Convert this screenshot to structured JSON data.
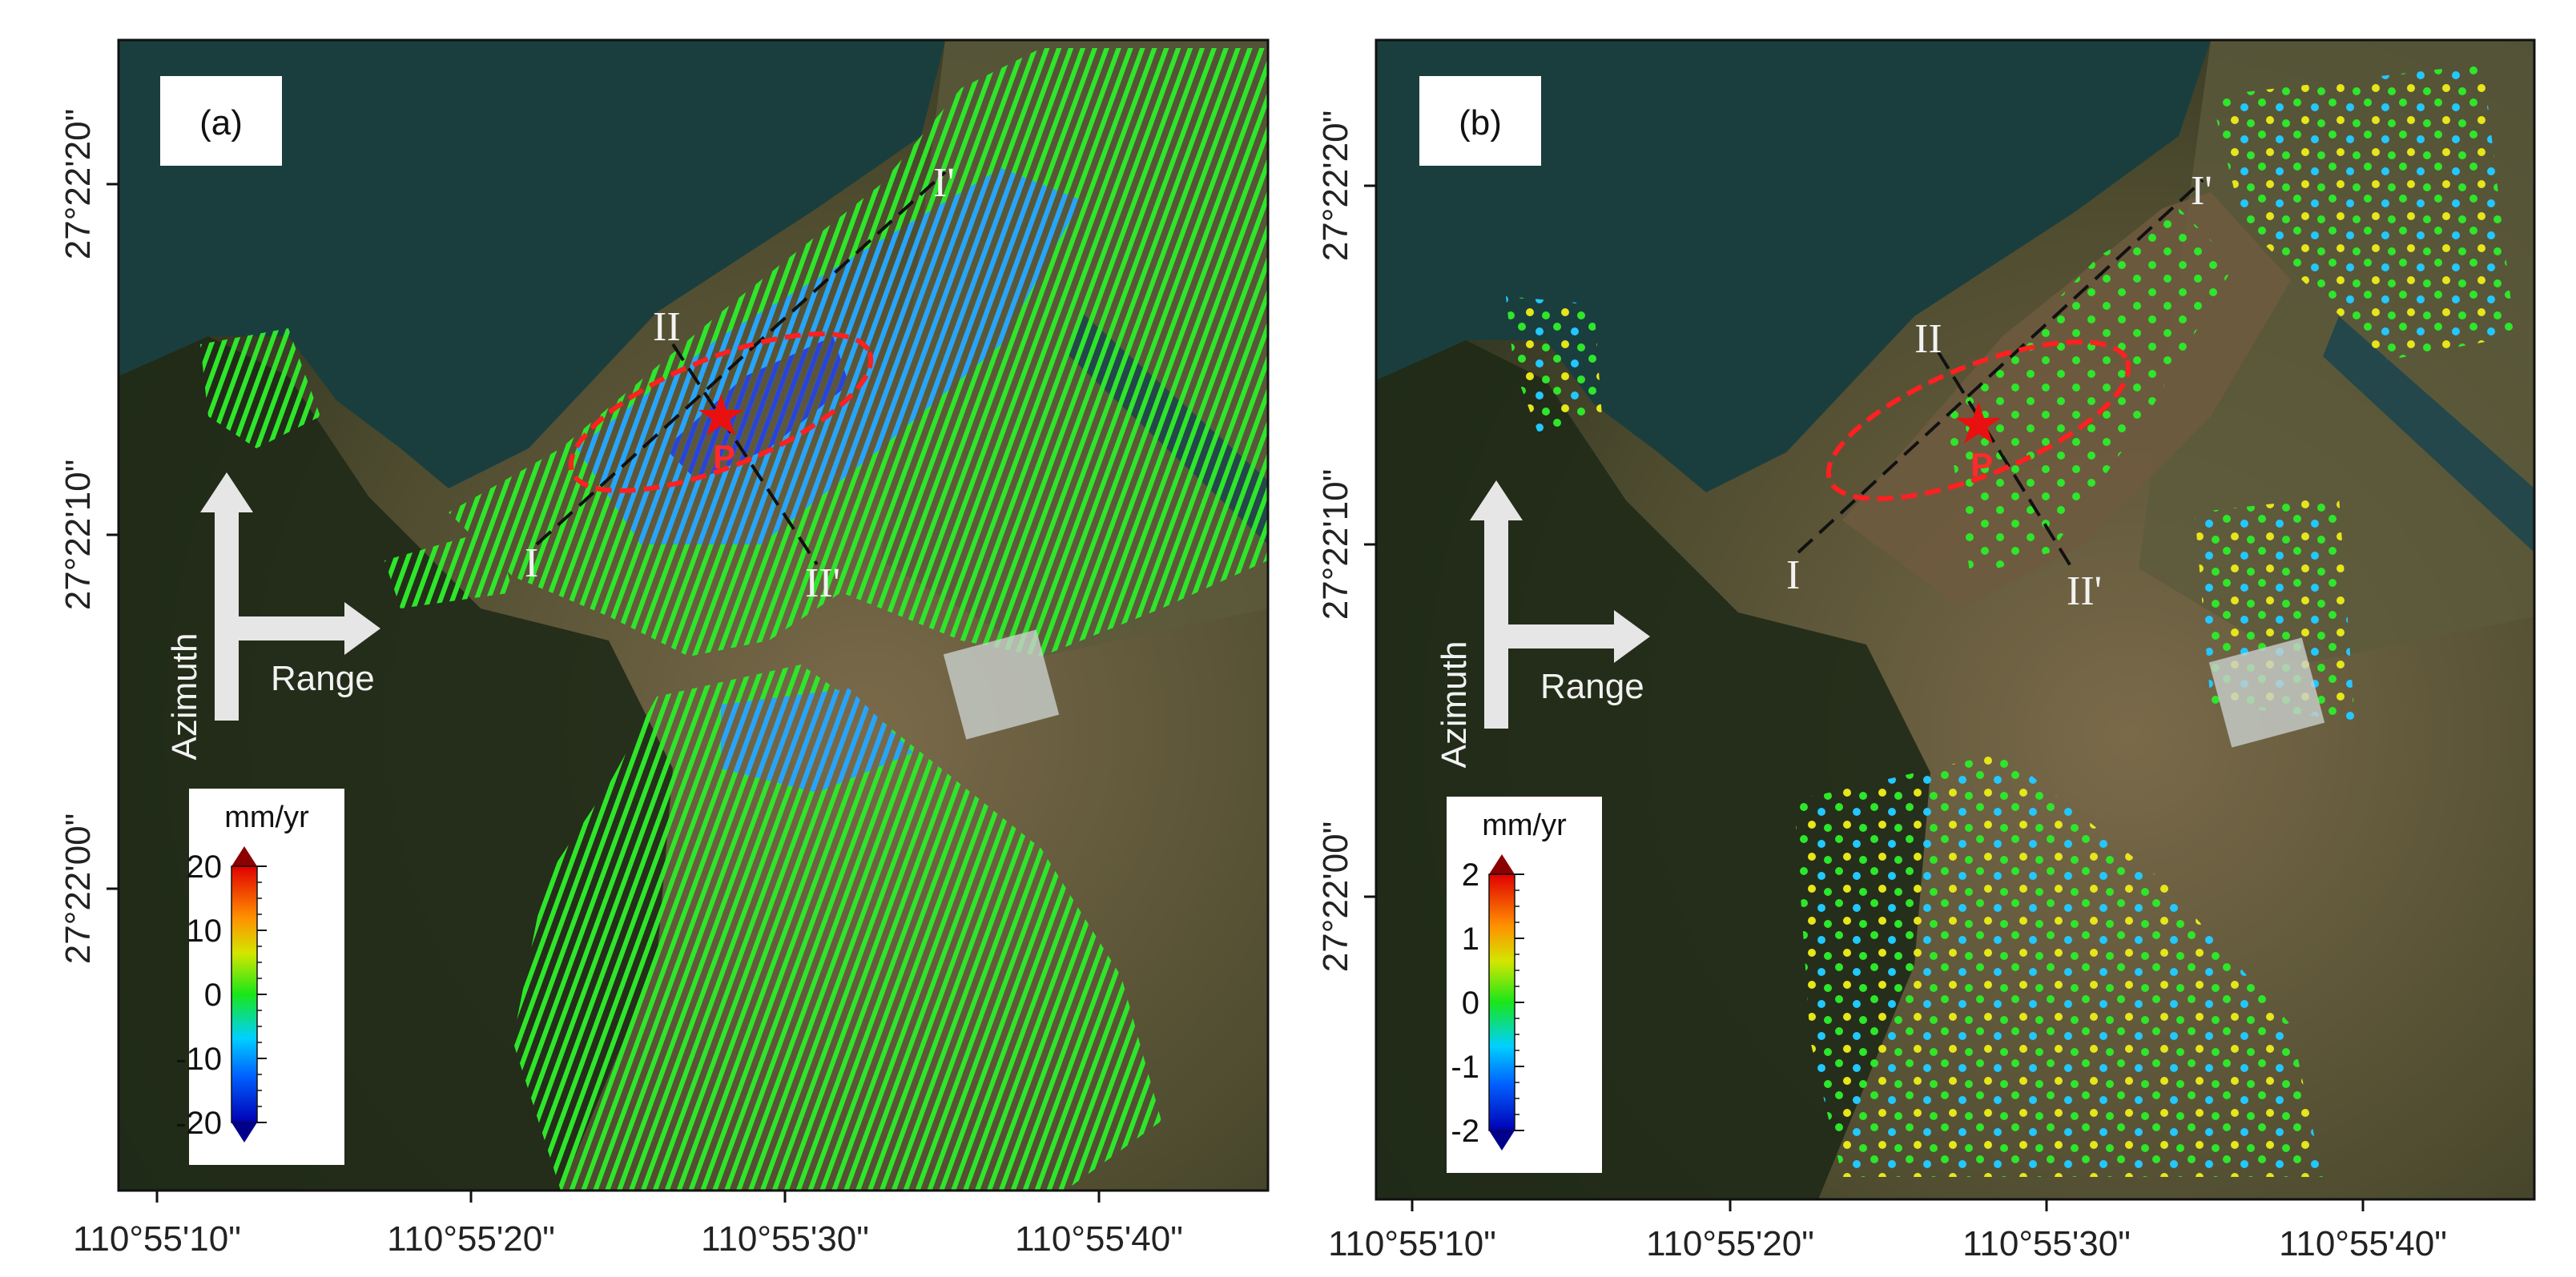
{
  "x_ticks": [
    "110°55'10\"",
    "110°55'20\"",
    "110°55'30\"",
    "110°55'40\""
  ],
  "y_ticks": [
    "27°22'20\"",
    "27°22'10\"",
    "27°22'00\""
  ],
  "panels": [
    {
      "label": "(a)",
      "profile_labels": {
        "I": "I",
        "I_prime": "I'",
        "II": "II",
        "II_prime": "II'"
      },
      "point_label": "P",
      "azimuth_label": "Azimuth",
      "range_label": "Range",
      "colorbar": {
        "unit": "mm/yr",
        "min": -20,
        "max": 20,
        "tick_labels": [
          "20",
          "10",
          "0",
          "-10",
          "-20"
        ]
      },
      "measurement": "dense",
      "colors": {
        "extend_top": "#8b0000",
        "extend_bottom": "#00008b"
      }
    },
    {
      "label": "(b)",
      "profile_labels": {
        "I": "I",
        "I_prime": "I'",
        "II": "II",
        "II_prime": "II'"
      },
      "point_label": "P",
      "azimuth_label": "Azimuth",
      "range_label": "Range",
      "colorbar": {
        "unit": "mm/yr",
        "min": -2,
        "max": 2,
        "tick_labels": [
          "2",
          "1",
          "0",
          "-1",
          "-2"
        ]
      },
      "measurement": "sparse",
      "colors": {
        "extend_top": "#8b0000",
        "extend_bottom": "#00008b"
      }
    }
  ],
  "colors": {
    "ellipse": "#ff2020",
    "profile_line": "#111111",
    "star": "#e81010",
    "arrow": "#e6e6e6"
  }
}
